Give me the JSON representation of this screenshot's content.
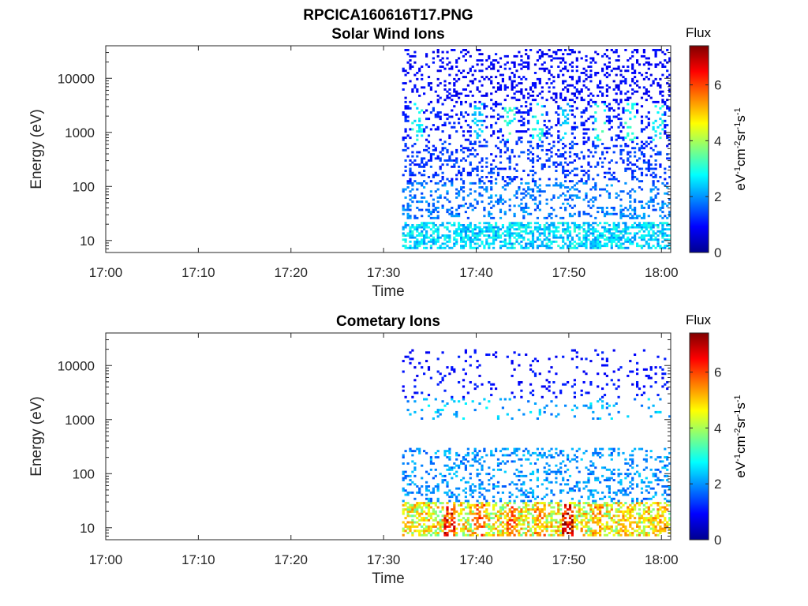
{
  "figure": {
    "title": "RPCICA160616T17.PNG"
  },
  "chart_data": [
    {
      "type": "heatmap",
      "title": "Solar Wind Ions",
      "xlabel": "Time",
      "ylabel": "Energy (eV)",
      "y_scale": "log",
      "ylim": [
        6,
        40000
      ],
      "xlim": [
        "17:00",
        "18:01"
      ],
      "x_ticks": [
        "17:00",
        "17:10",
        "17:20",
        "17:30",
        "17:40",
        "17:50",
        "18:00"
      ],
      "y_ticks": [
        "10",
        "100",
        "1000",
        "10000"
      ],
      "data_start": "17:32",
      "colorbar": {
        "label": "Flux",
        "unit": "eV-1cm-2sr-1s-1",
        "range": [
          0,
          7.4
        ],
        "ticks": [
          "0",
          "2",
          "4",
          "6"
        ]
      },
      "bands": [
        {
          "energy_range": [
            7,
            22
          ],
          "typical_flux": 2.5,
          "description": "dense low-energy band"
        },
        {
          "energy_range": [
            25,
            120
          ],
          "typical_flux": 1.8
        },
        {
          "energy_range": [
            120,
            700
          ],
          "typical_flux": 1.3
        },
        {
          "energy_range": [
            700,
            3500
          ],
          "typical_flux": 1.1
        },
        {
          "energy_range": [
            3500,
            35000
          ],
          "typical_flux": 0.9
        }
      ],
      "bursts": [
        {
          "time": "17:33.5",
          "energy": 1500,
          "flux": 3.0
        },
        {
          "time": "17:40.0",
          "energy": 1500,
          "flux": 2.5
        },
        {
          "time": "17:43.5",
          "energy": 1500,
          "flux": 3.2
        },
        {
          "time": "17:46.5",
          "energy": 1500,
          "flux": 3.0
        },
        {
          "time": "17:49.5",
          "energy": 1500,
          "flux": 2.4
        },
        {
          "time": "17:53.2",
          "energy": 1500,
          "flux": 3.1
        },
        {
          "time": "17:56.5",
          "energy": 1500,
          "flux": 3.0
        },
        {
          "time": "17:59.5",
          "energy": 1500,
          "flux": 2.9
        }
      ]
    },
    {
      "type": "heatmap",
      "title": "Cometary Ions",
      "xlabel": "Time",
      "ylabel": "Energy (eV)",
      "y_scale": "log",
      "ylim": [
        6,
        40000
      ],
      "xlim": [
        "17:00",
        "18:01"
      ],
      "x_ticks": [
        "17:00",
        "17:10",
        "17:20",
        "17:30",
        "17:40",
        "17:50",
        "18:00"
      ],
      "y_ticks": [
        "10",
        "100",
        "1000",
        "10000"
      ],
      "data_start": "17:32",
      "colorbar": {
        "label": "Flux",
        "unit": "eV-1cm-2sr-1s-1",
        "range": [
          0,
          7.4
        ],
        "ticks": [
          "0",
          "2",
          "4",
          "6"
        ]
      },
      "bands": [
        {
          "energy_range": [
            7,
            30
          ],
          "typical_flux": 4.5,
          "description": "intense low-energy band, peaks up to ~6.5"
        },
        {
          "energy_range": [
            30,
            300
          ],
          "typical_flux": 2.0
        },
        {
          "energy_range": [
            1000,
            2500
          ],
          "typical_flux": 2.2
        },
        {
          "energy_range": [
            2500,
            20000
          ],
          "typical_flux": 1.0
        }
      ],
      "bursts": [
        {
          "time": "17:37.0",
          "energy": 12,
          "flux": 6.5
        },
        {
          "time": "17:40.2",
          "energy": 12,
          "flux": 6.0
        },
        {
          "time": "17:43.8",
          "energy": 12,
          "flux": 5.8
        },
        {
          "time": "17:46.8",
          "energy": 12,
          "flux": 5.5
        },
        {
          "time": "17:49.8",
          "energy": 12,
          "flux": 6.8
        },
        {
          "time": "17:53.0",
          "energy": 12,
          "flux": 5.5
        },
        {
          "time": "17:56.0",
          "energy": 12,
          "flux": 5.0
        },
        {
          "time": "17:59.8",
          "energy": 12,
          "flux": 5.2
        }
      ]
    }
  ]
}
